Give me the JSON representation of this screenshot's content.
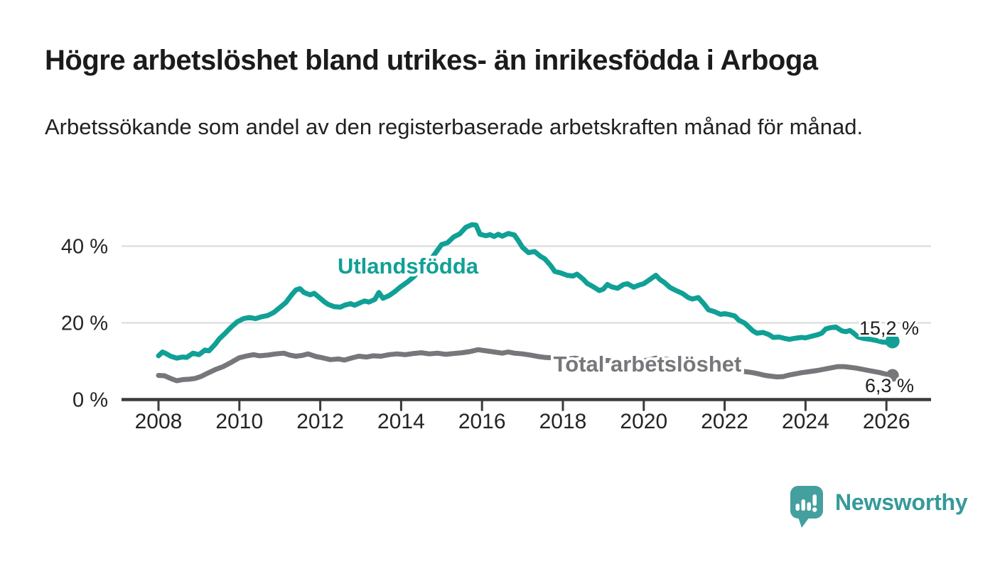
{
  "header": {
    "title": "Högre arbetslöshet bland utrikes- än inrikesfödda i Arboga",
    "subtitle": "Arbetssökande som andel av den registerbaserade arbetskraften månad för månad."
  },
  "branding": {
    "logo_text": "Newsworthy",
    "logo_icon": "speech-bubble-bar-chart-icon",
    "logo_teal": "#44a09e",
    "logo_text_color": "#35999a"
  },
  "colors": {
    "foreign_born_line": "#10a096",
    "total_line": "#77777b",
    "grid": "#d9d9d9",
    "axis": "#3b3b3b",
    "text": "#242424"
  },
  "chart_data": {
    "type": "line",
    "title": "Högre arbetslöshet bland utrikes- än inrikesfödda i Arboga",
    "xlabel": "",
    "ylabel": "",
    "grid": true,
    "legend_position": "inline-labels",
    "x_range": [
      2008,
      2026.15
    ],
    "ylim": [
      0,
      47
    ],
    "y_ticks": [
      {
        "value": 0,
        "label": "0 %"
      },
      {
        "value": 20,
        "label": "20 %"
      },
      {
        "value": 40,
        "label": "40 %"
      }
    ],
    "x_ticks": [
      {
        "value": 2008,
        "label": "2008"
      },
      {
        "value": 2010,
        "label": "2010"
      },
      {
        "value": 2012,
        "label": "2012"
      },
      {
        "value": 2014,
        "label": "2014"
      },
      {
        "value": 2016,
        "label": "2016"
      },
      {
        "value": 2018,
        "label": "2018"
      },
      {
        "value": 2020,
        "label": "2020"
      },
      {
        "value": 2022,
        "label": "2022"
      },
      {
        "value": 2024,
        "label": "2024"
      },
      {
        "value": 2026,
        "label": "2026"
      }
    ],
    "series": [
      {
        "name": "Utlandsfödda",
        "color": "#10a096",
        "end_label": "15,2 %",
        "last_value": 15.2,
        "points": [
          [
            2008.0,
            11.4
          ],
          [
            2008.1,
            12.4
          ],
          [
            2008.2,
            11.9
          ],
          [
            2008.3,
            11.3
          ],
          [
            2008.45,
            10.8
          ],
          [
            2008.6,
            11.1
          ],
          [
            2008.7,
            11.0
          ],
          [
            2008.85,
            12.1
          ],
          [
            2009.0,
            11.7
          ],
          [
            2009.15,
            12.9
          ],
          [
            2009.25,
            12.7
          ],
          [
            2009.4,
            14.4
          ],
          [
            2009.5,
            15.8
          ],
          [
            2009.65,
            17.3
          ],
          [
            2009.8,
            18.9
          ],
          [
            2009.95,
            20.3
          ],
          [
            2010.1,
            21.1
          ],
          [
            2010.25,
            21.4
          ],
          [
            2010.4,
            21.1
          ],
          [
            2010.55,
            21.6
          ],
          [
            2010.7,
            21.9
          ],
          [
            2010.85,
            22.7
          ],
          [
            2011.0,
            24.0
          ],
          [
            2011.15,
            25.3
          ],
          [
            2011.3,
            27.4
          ],
          [
            2011.4,
            28.6
          ],
          [
            2011.5,
            28.9
          ],
          [
            2011.6,
            27.9
          ],
          [
            2011.75,
            27.3
          ],
          [
            2011.85,
            27.7
          ],
          [
            2012.0,
            26.4
          ],
          [
            2012.1,
            25.5
          ],
          [
            2012.2,
            24.8
          ],
          [
            2012.35,
            24.2
          ],
          [
            2012.5,
            24.1
          ],
          [
            2012.6,
            24.6
          ],
          [
            2012.75,
            25.0
          ],
          [
            2012.85,
            24.6
          ],
          [
            2013.0,
            25.3
          ],
          [
            2013.1,
            25.7
          ],
          [
            2013.2,
            25.4
          ],
          [
            2013.35,
            26.1
          ],
          [
            2013.45,
            27.9
          ],
          [
            2013.55,
            26.4
          ],
          [
            2013.7,
            27.1
          ],
          [
            2013.85,
            28.2
          ],
          [
            2014.0,
            29.5
          ],
          [
            2014.15,
            30.6
          ],
          [
            2014.3,
            31.9
          ],
          [
            2014.45,
            33.6
          ],
          [
            2014.6,
            35.3
          ],
          [
            2014.75,
            36.8
          ],
          [
            2014.9,
            38.9
          ],
          [
            2015.0,
            40.4
          ],
          [
            2015.15,
            40.9
          ],
          [
            2015.3,
            42.4
          ],
          [
            2015.45,
            43.2
          ],
          [
            2015.6,
            44.9
          ],
          [
            2015.75,
            45.6
          ],
          [
            2015.85,
            45.5
          ],
          [
            2015.95,
            43.1
          ],
          [
            2016.1,
            42.7
          ],
          [
            2016.2,
            43.0
          ],
          [
            2016.3,
            42.5
          ],
          [
            2016.4,
            43.1
          ],
          [
            2016.5,
            42.6
          ],
          [
            2016.65,
            43.3
          ],
          [
            2016.8,
            42.9
          ],
          [
            2016.9,
            41.4
          ],
          [
            2017.0,
            39.7
          ],
          [
            2017.15,
            38.3
          ],
          [
            2017.3,
            38.6
          ],
          [
            2017.45,
            37.3
          ],
          [
            2017.55,
            36.7
          ],
          [
            2017.7,
            34.9
          ],
          [
            2017.8,
            33.4
          ],
          [
            2017.95,
            33.0
          ],
          [
            2018.1,
            32.4
          ],
          [
            2018.25,
            32.2
          ],
          [
            2018.35,
            32.7
          ],
          [
            2018.5,
            31.4
          ],
          [
            2018.6,
            30.3
          ],
          [
            2018.75,
            29.4
          ],
          [
            2018.9,
            28.4
          ],
          [
            2019.0,
            28.8
          ],
          [
            2019.1,
            30.0
          ],
          [
            2019.2,
            29.4
          ],
          [
            2019.35,
            29.0
          ],
          [
            2019.5,
            30.0
          ],
          [
            2019.6,
            30.2
          ],
          [
            2019.75,
            29.3
          ],
          [
            2019.9,
            29.9
          ],
          [
            2020.0,
            30.2
          ],
          [
            2020.15,
            31.3
          ],
          [
            2020.3,
            32.4
          ],
          [
            2020.4,
            31.3
          ],
          [
            2020.5,
            30.6
          ],
          [
            2020.65,
            29.2
          ],
          [
            2020.8,
            28.4
          ],
          [
            2020.95,
            27.7
          ],
          [
            2021.1,
            26.6
          ],
          [
            2021.2,
            26.2
          ],
          [
            2021.35,
            26.6
          ],
          [
            2021.5,
            24.8
          ],
          [
            2021.6,
            23.4
          ],
          [
            2021.75,
            22.9
          ],
          [
            2021.9,
            22.2
          ],
          [
            2022.0,
            22.4
          ],
          [
            2022.1,
            22.2
          ],
          [
            2022.25,
            21.8
          ],
          [
            2022.35,
            20.7
          ],
          [
            2022.5,
            19.9
          ],
          [
            2022.6,
            18.9
          ],
          [
            2022.7,
            17.9
          ],
          [
            2022.8,
            17.3
          ],
          [
            2022.95,
            17.5
          ],
          [
            2023.1,
            16.9
          ],
          [
            2023.2,
            16.2
          ],
          [
            2023.35,
            16.3
          ],
          [
            2023.5,
            15.9
          ],
          [
            2023.6,
            15.7
          ],
          [
            2023.75,
            16.0
          ],
          [
            2023.9,
            16.2
          ],
          [
            2024.0,
            16.1
          ],
          [
            2024.15,
            16.5
          ],
          [
            2024.3,
            16.9
          ],
          [
            2024.4,
            17.3
          ],
          [
            2024.5,
            18.4
          ],
          [
            2024.6,
            18.7
          ],
          [
            2024.75,
            18.9
          ],
          [
            2024.9,
            17.9
          ],
          [
            2025.0,
            17.7
          ],
          [
            2025.1,
            18.0
          ],
          [
            2025.2,
            17.2
          ],
          [
            2025.3,
            16.3
          ],
          [
            2025.45,
            15.9
          ],
          [
            2025.6,
            15.7
          ],
          [
            2025.75,
            15.4
          ],
          [
            2025.9,
            15.0
          ],
          [
            2026.0,
            14.9
          ],
          [
            2026.15,
            15.2
          ]
        ]
      },
      {
        "name": "Total arbetslöshet",
        "color": "#77777b",
        "end_label": "6,3 %",
        "last_value": 6.3,
        "points": [
          [
            2008.0,
            6.3
          ],
          [
            2008.15,
            6.2
          ],
          [
            2008.3,
            5.5
          ],
          [
            2008.45,
            4.9
          ],
          [
            2008.6,
            5.2
          ],
          [
            2008.75,
            5.3
          ],
          [
            2008.9,
            5.5
          ],
          [
            2009.05,
            6.0
          ],
          [
            2009.2,
            6.8
          ],
          [
            2009.4,
            7.8
          ],
          [
            2009.6,
            8.6
          ],
          [
            2009.8,
            9.7
          ],
          [
            2010.0,
            10.9
          ],
          [
            2010.2,
            11.4
          ],
          [
            2010.35,
            11.7
          ],
          [
            2010.5,
            11.4
          ],
          [
            2010.7,
            11.6
          ],
          [
            2010.9,
            11.9
          ],
          [
            2011.1,
            12.1
          ],
          [
            2011.25,
            11.6
          ],
          [
            2011.4,
            11.3
          ],
          [
            2011.55,
            11.5
          ],
          [
            2011.7,
            11.9
          ],
          [
            2011.9,
            11.2
          ],
          [
            2012.05,
            10.9
          ],
          [
            2012.25,
            10.4
          ],
          [
            2012.45,
            10.6
          ],
          [
            2012.6,
            10.3
          ],
          [
            2012.8,
            10.9
          ],
          [
            2012.95,
            11.3
          ],
          [
            2013.15,
            11.1
          ],
          [
            2013.3,
            11.4
          ],
          [
            2013.5,
            11.3
          ],
          [
            2013.7,
            11.7
          ],
          [
            2013.9,
            11.9
          ],
          [
            2014.1,
            11.7
          ],
          [
            2014.3,
            12.0
          ],
          [
            2014.5,
            12.2
          ],
          [
            2014.7,
            11.9
          ],
          [
            2014.9,
            12.1
          ],
          [
            2015.1,
            11.8
          ],
          [
            2015.3,
            12.0
          ],
          [
            2015.5,
            12.2
          ],
          [
            2015.7,
            12.5
          ],
          [
            2015.9,
            13.0
          ],
          [
            2016.1,
            12.7
          ],
          [
            2016.3,
            12.4
          ],
          [
            2016.5,
            12.1
          ],
          [
            2016.65,
            12.4
          ],
          [
            2016.8,
            12.1
          ],
          [
            2017.0,
            11.9
          ],
          [
            2017.2,
            11.6
          ],
          [
            2017.4,
            11.2
          ],
          [
            2017.55,
            11.0
          ],
          [
            2017.7,
            10.9
          ],
          [
            2017.9,
            10.7
          ],
          [
            2018.1,
            10.6
          ],
          [
            2018.3,
            10.8
          ],
          [
            2018.5,
            10.4
          ],
          [
            2018.7,
            10.2
          ],
          [
            2018.9,
            10.0
          ],
          [
            2019.1,
            10.2
          ],
          [
            2019.3,
            9.9
          ],
          [
            2019.5,
            10.0
          ],
          [
            2019.7,
            9.8
          ],
          [
            2019.9,
            9.9
          ],
          [
            2020.1,
            10.3
          ],
          [
            2020.3,
            10.8
          ],
          [
            2020.5,
            10.6
          ],
          [
            2020.7,
            10.3
          ],
          [
            2020.9,
            10.0
          ],
          [
            2021.1,
            9.8
          ],
          [
            2021.3,
            9.5
          ],
          [
            2021.5,
            9.1
          ],
          [
            2021.7,
            8.7
          ],
          [
            2021.9,
            8.3
          ],
          [
            2022.1,
            7.9
          ],
          [
            2022.3,
            7.6
          ],
          [
            2022.5,
            7.3
          ],
          [
            2022.65,
            7.1
          ],
          [
            2022.8,
            6.8
          ],
          [
            2023.0,
            6.3
          ],
          [
            2023.15,
            6.1
          ],
          [
            2023.3,
            5.9
          ],
          [
            2023.45,
            6.0
          ],
          [
            2023.6,
            6.4
          ],
          [
            2023.75,
            6.7
          ],
          [
            2023.9,
            7.0
          ],
          [
            2024.1,
            7.3
          ],
          [
            2024.3,
            7.6
          ],
          [
            2024.5,
            8.0
          ],
          [
            2024.65,
            8.3
          ],
          [
            2024.8,
            8.6
          ],
          [
            2024.95,
            8.6
          ],
          [
            2025.1,
            8.4
          ],
          [
            2025.25,
            8.2
          ],
          [
            2025.4,
            7.9
          ],
          [
            2025.55,
            7.6
          ],
          [
            2025.7,
            7.3
          ],
          [
            2025.85,
            7.0
          ],
          [
            2026.0,
            6.6
          ],
          [
            2026.15,
            6.3
          ]
        ]
      }
    ]
  }
}
